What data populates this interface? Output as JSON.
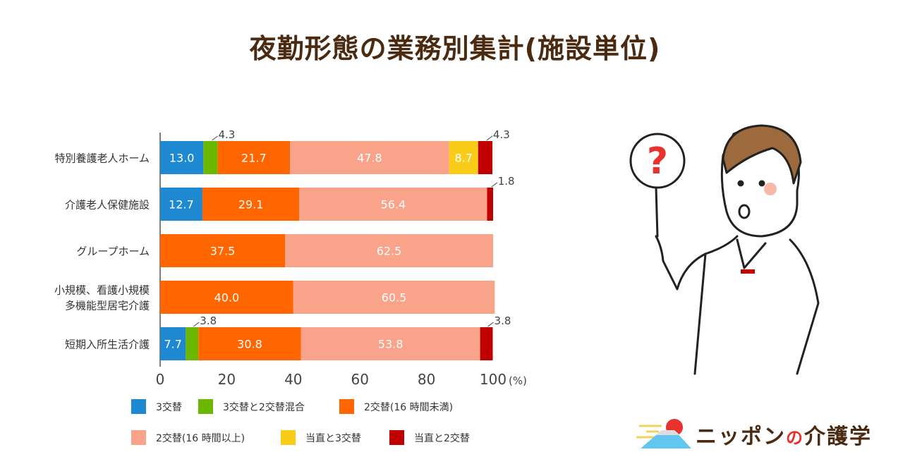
{
  "title": "夜勤形態の業務別集計(施設単位)",
  "logo": {
    "text_a": "ニッポン",
    "text_no": "の",
    "text_b": "介護学"
  },
  "illustration": {
    "sign_text": "?"
  },
  "chart_data": {
    "type": "bar",
    "orientation": "horizontal",
    "stacked": true,
    "title": "",
    "xlabel": "",
    "ylabel": "",
    "x_unit": "(%)",
    "xlim": [
      0,
      100
    ],
    "xticks": [
      0,
      20,
      40,
      60,
      80,
      100
    ],
    "grid": false,
    "legend_position": "bottom",
    "categories": [
      "特別養護老人ホーム",
      "介護老人保健施設",
      "グループホーム",
      "小規模、看護小規模\n多機能型居宅介護",
      "短期入所生活介護"
    ],
    "category_lines": [
      [
        "特別養護老人ホーム"
      ],
      [
        "介護老人保健施設"
      ],
      [
        "グループホーム"
      ],
      [
        "小規模、看護小規模",
        "多機能型居宅介護"
      ],
      [
        "短期入所生活介護"
      ]
    ],
    "series": [
      {
        "name": "3交替",
        "color": "#1e88d0",
        "values": [
          13.0,
          12.7,
          0,
          0,
          7.7
        ]
      },
      {
        "name": "3交替と2交替混合",
        "color": "#6cb800",
        "values": [
          4.3,
          0,
          0,
          0,
          3.8
        ]
      },
      {
        "name": "2交替(16 時間未満)",
        "color": "#ff6600",
        "values": [
          21.7,
          29.1,
          37.5,
          40.0,
          30.8
        ]
      },
      {
        "name": "2交替(16 時間以上)",
        "color": "#f9a38a",
        "values": [
          47.8,
          56.4,
          62.5,
          60.5,
          53.8
        ]
      },
      {
        "name": "当直と3交替",
        "color": "#f9cc1a",
        "values": [
          8.7,
          0,
          0,
          0,
          0
        ]
      },
      {
        "name": "当直と2交替",
        "color": "#c00000",
        "values": [
          4.3,
          1.8,
          0,
          0,
          3.8
        ]
      }
    ]
  }
}
